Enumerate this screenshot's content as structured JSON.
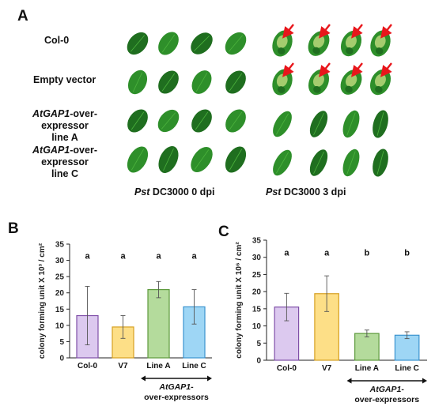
{
  "panel_a": {
    "label": "A",
    "rows": [
      {
        "italic": "",
        "rest": "Col-0",
        "line2": ""
      },
      {
        "italic": "",
        "rest": "Empty vector",
        "line2": ""
      },
      {
        "italic": "AtGAP1",
        "rest": "-over-expressor",
        "line2": "line A"
      },
      {
        "italic": "AtGAP1",
        "rest": "-over-expressor",
        "line2": "line C"
      }
    ],
    "conditions": [
      {
        "italic": "Pst",
        "rest": " DC3000 0 dpi"
      },
      {
        "italic": "Pst",
        "rest": " DC3000 3 dpi"
      }
    ],
    "leaf_colors": {
      "healthy": "#2e8f2a",
      "healthy_light": "#4cb33d",
      "dark": "#1f6e1f",
      "chlorotic": "#b8d77a",
      "arrow": "#e8161b"
    }
  },
  "chart_data": [
    {
      "panel_label": "B",
      "type": "bar",
      "ylabel": "colony forming unit X 10³ / cm²",
      "ylim": [
        0,
        35
      ],
      "yticks": [
        0,
        5,
        10,
        15,
        20,
        25,
        30,
        35
      ],
      "categories": [
        "Col-0",
        "V7",
        "Line A",
        "Line C"
      ],
      "values": [
        13.0,
        9.5,
        21.0,
        15.7
      ],
      "errors": [
        9.0,
        3.5,
        2.5,
        5.3
      ],
      "significance": [
        "a",
        "a",
        "a",
        "a"
      ],
      "colors": [
        "#dcc9ef",
        "#fddf87",
        "#b4db9c",
        "#9ed6f5"
      ],
      "edge_colors": [
        "#7f4fa8",
        "#d6a021",
        "#5d9a3c",
        "#3a93cf"
      ],
      "group_label": {
        "italic": "AtGAP1",
        "rest": "-",
        "line2": "over-expressors"
      }
    },
    {
      "panel_label": "C",
      "type": "bar",
      "ylabel": "colony forming unit X 10⁶ / cm²",
      "ylim": [
        0,
        35
      ],
      "yticks": [
        0,
        5,
        10,
        15,
        20,
        25,
        30,
        35
      ],
      "categories": [
        "Col-0",
        "V7",
        "Line A",
        "Line C"
      ],
      "values": [
        15.5,
        19.4,
        7.8,
        7.3
      ],
      "errors": [
        4.0,
        5.2,
        1.0,
        1.0
      ],
      "significance": [
        "a",
        "a",
        "b",
        "b"
      ],
      "colors": [
        "#dcc9ef",
        "#fddf87",
        "#b4db9c",
        "#9ed6f5"
      ],
      "edge_colors": [
        "#7f4fa8",
        "#d6a021",
        "#5d9a3c",
        "#3a93cf"
      ],
      "group_label": {
        "italic": "AtGAP1",
        "rest": "-",
        "line2": "over-expressors"
      }
    }
  ]
}
